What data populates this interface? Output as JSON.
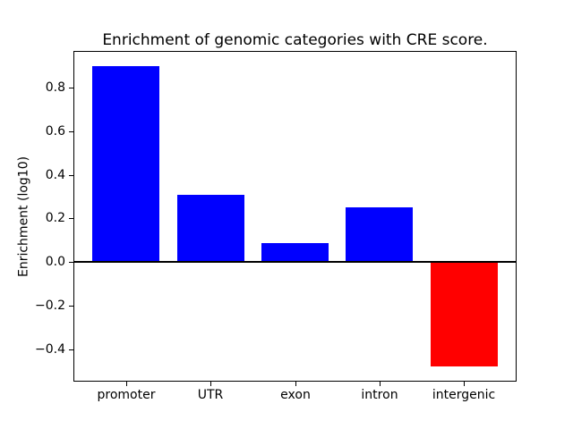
{
  "figure": {
    "background": "#ffffff"
  },
  "chart_data": {
    "type": "bar",
    "title": "Enrichment of genomic categories with CRE score.",
    "ylabel": "Enrichment (log10)",
    "categories": [
      "promoter",
      "UTR",
      "exon",
      "intron",
      "intergenic"
    ],
    "values": [
      0.9,
      0.31,
      0.085,
      0.25,
      -0.48
    ],
    "bar_colors": [
      "#0000ff",
      "#0000ff",
      "#0000ff",
      "#0000ff",
      "#ff0000"
    ],
    "positive_color": "#0000ff",
    "negative_color": "#ff0000",
    "ylim": [
      -0.549,
      0.969
    ],
    "xlim": [
      -0.625,
      4.625
    ],
    "yticks": [
      0.8,
      0.6,
      0.4,
      0.2,
      0.0,
      -0.2,
      -0.4
    ],
    "ytick_labels": [
      "0.8",
      "0.6",
      "0.4",
      "0.2",
      "0.0",
      "−0.2",
      "−0.4"
    ],
    "bar_width_fraction": 0.8,
    "grid": false,
    "zero_line": true,
    "legend": null,
    "axis_color": "#000000"
  }
}
